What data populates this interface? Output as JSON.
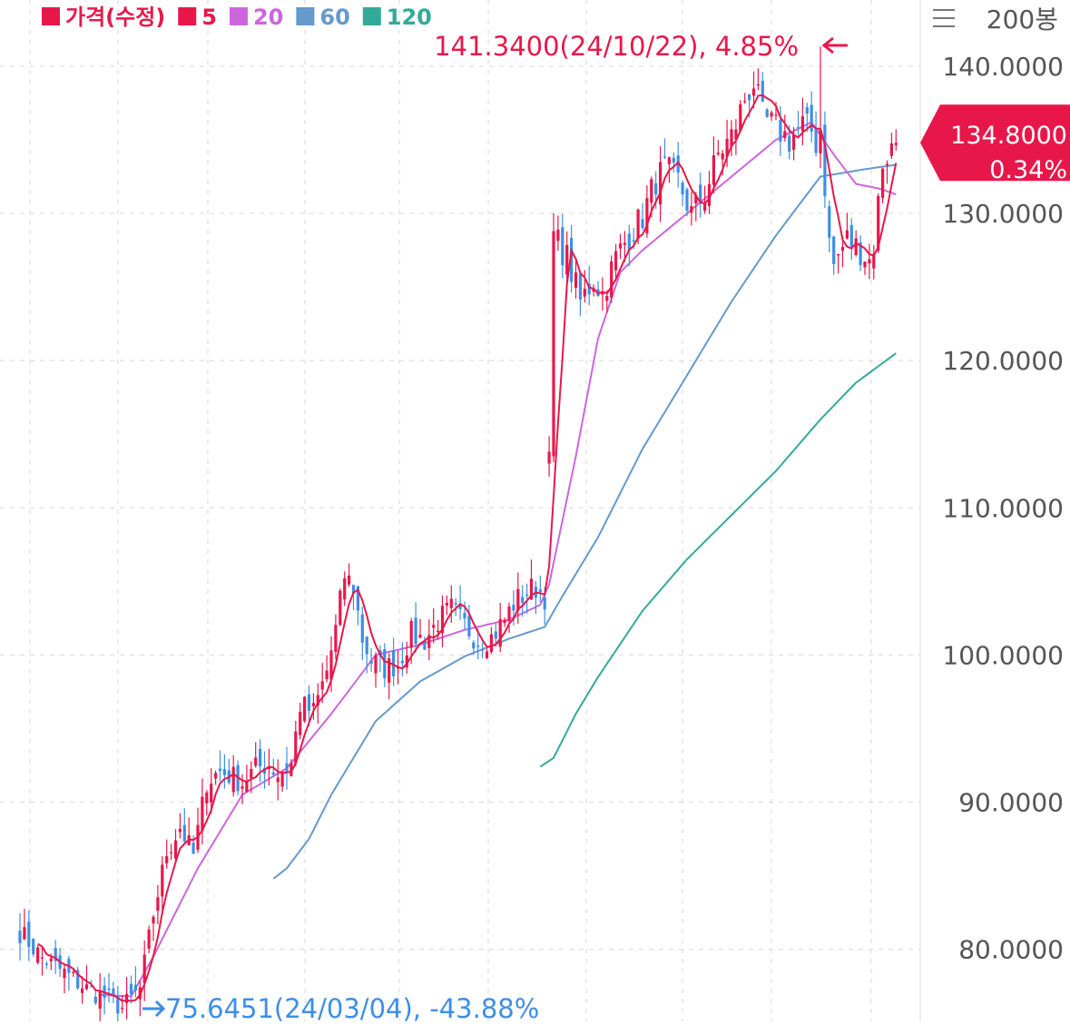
{
  "header": {
    "menu_icon": "menu-icon",
    "period_label": "200봉"
  },
  "legend": [
    {
      "name": "가격(수정)",
      "color": "#e8174a"
    },
    {
      "name": "5",
      "color": "#e8174a"
    },
    {
      "name": "20",
      "color": "#cc66dd"
    },
    {
      "name": "60",
      "color": "#6699cc"
    },
    {
      "name": "120",
      "color": "#33aa99"
    }
  ],
  "colors": {
    "up": "#e8174a",
    "down": "#3d8ee6",
    "ma5": "#e8174a",
    "ma20": "#cc66dd",
    "ma60": "#6699cc",
    "ma120": "#33aa99",
    "grid": "#d8d8d8",
    "divider": "#e8e8e8"
  },
  "chart_data": {
    "type": "candlestick",
    "bars": 200,
    "y_ticks": [
      "140.0000",
      "130.0000",
      "120.0000",
      "110.0000",
      "100.0000",
      "90.0000",
      "80.0000"
    ],
    "y_tick_values": [
      140,
      130,
      120,
      110,
      100,
      90,
      80
    ],
    "ylim": [
      75.1,
      144.5
    ],
    "high_annotation": {
      "text": "141.3400(24/10/22), 4.85%",
      "value": 141.34,
      "date": "24/10/22",
      "pct": "4.85%",
      "bar": 180
    },
    "low_annotation": {
      "text": "75.6451(24/03/04), -43.88%",
      "value": 75.6451,
      "date": "24/03/04",
      "pct": "-43.88%",
      "bar": 23
    },
    "current": {
      "price": "134.8000",
      "change": "0.34%",
      "value": 134.8
    },
    "close_keypoints": [
      [
        0,
        81.2
      ],
      [
        5,
        79.4
      ],
      [
        10,
        78.4
      ],
      [
        15,
        77.3
      ],
      [
        20,
        76.6
      ],
      [
        23,
        76.0
      ],
      [
        27,
        77.3
      ],
      [
        30,
        82.4
      ],
      [
        33,
        86.6
      ],
      [
        36,
        88.3
      ],
      [
        39,
        86.4
      ],
      [
        42,
        91.4
      ],
      [
        45,
        92.1
      ],
      [
        48,
        91.7
      ],
      [
        50,
        91.3
      ],
      [
        53,
        92.3
      ],
      [
        56,
        92.6
      ],
      [
        58,
        91.9
      ],
      [
        61,
        92.6
      ],
      [
        63,
        96.6
      ],
      [
        66,
        96.1
      ],
      [
        69,
        98.9
      ],
      [
        71,
        101.7
      ],
      [
        73,
        105.4
      ],
      [
        75,
        104.6
      ],
      [
        77,
        101.1
      ],
      [
        79,
        99.6
      ],
      [
        82,
        99.1
      ],
      [
        85,
        99.4
      ],
      [
        88,
        101.4
      ],
      [
        91,
        101.0
      ],
      [
        94,
        102.3
      ],
      [
        97,
        103.1
      ],
      [
        100,
        102.0
      ],
      [
        103,
        101.0
      ],
      [
        106,
        101.2
      ],
      [
        109,
        102.4
      ],
      [
        111,
        103.5
      ],
      [
        114,
        104.3
      ],
      [
        116,
        104.6
      ],
      [
        118,
        104.0
      ],
      [
        119,
        113.0
      ],
      [
        120,
        128.5
      ],
      [
        123,
        127.0
      ],
      [
        126,
        124.0
      ],
      [
        129,
        125.5
      ],
      [
        131,
        124.5
      ],
      [
        134,
        127.0
      ],
      [
        137,
        128.5
      ],
      [
        140,
        129.8
      ],
      [
        143,
        132.3
      ],
      [
        145,
        133.0
      ],
      [
        148,
        132.2
      ],
      [
        151,
        130.0
      ],
      [
        154,
        131.3
      ],
      [
        157,
        134.0
      ],
      [
        160,
        135.2
      ],
      [
        163,
        137.8
      ],
      [
        165,
        138.9
      ],
      [
        167,
        136.5
      ],
      [
        170,
        135.8
      ],
      [
        173,
        135.0
      ],
      [
        176,
        136.0
      ],
      [
        178,
        135.6
      ],
      [
        179,
        134.8
      ],
      [
        180,
        135.8
      ],
      [
        182,
        128.0
      ],
      [
        183,
        126.5
      ],
      [
        186,
        128.3
      ],
      [
        189,
        127.5
      ],
      [
        191,
        126.8
      ],
      [
        192,
        127.9
      ],
      [
        194,
        133.5
      ],
      [
        196,
        134.4
      ],
      [
        197,
        134.8
      ]
    ],
    "ma20_keypoints": [
      [
        18,
        76.9
      ],
      [
        25,
        76.8
      ],
      [
        30,
        79.5
      ],
      [
        40,
        85.5
      ],
      [
        50,
        90.5
      ],
      [
        60,
        92.3
      ],
      [
        70,
        96.0
      ],
      [
        80,
        100.0
      ],
      [
        90,
        100.7
      ],
      [
        100,
        101.7
      ],
      [
        110,
        102.4
      ],
      [
        117,
        103.4
      ],
      [
        119,
        104.8
      ],
      [
        125,
        113.5
      ],
      [
        130,
        121.5
      ],
      [
        135,
        126.0
      ],
      [
        140,
        127.5
      ],
      [
        150,
        130.0
      ],
      [
        160,
        132.5
      ],
      [
        170,
        135.0
      ],
      [
        178,
        136.2
      ],
      [
        183,
        134.0
      ],
      [
        188,
        132.0
      ],
      [
        193,
        131.7
      ],
      [
        197,
        131.3
      ]
    ],
    "ma60_keypoints": [
      [
        57,
        84.8
      ],
      [
        60,
        85.5
      ],
      [
        65,
        87.5
      ],
      [
        70,
        90.5
      ],
      [
        80,
        95.5
      ],
      [
        90,
        98.2
      ],
      [
        100,
        99.9
      ],
      [
        110,
        101.1
      ],
      [
        118,
        101.9
      ],
      [
        122,
        104.0
      ],
      [
        130,
        108.0
      ],
      [
        140,
        114.0
      ],
      [
        150,
        119.0
      ],
      [
        160,
        124.0
      ],
      [
        170,
        128.5
      ],
      [
        180,
        132.5
      ],
      [
        190,
        133.0
      ],
      [
        197,
        133.3
      ]
    ],
    "ma120_keypoints": [
      [
        117,
        92.4
      ],
      [
        120,
        93.0
      ],
      [
        125,
        96.0
      ],
      [
        130,
        98.5
      ],
      [
        140,
        103.0
      ],
      [
        150,
        106.5
      ],
      [
        160,
        109.5
      ],
      [
        170,
        112.5
      ],
      [
        180,
        116.0
      ],
      [
        188,
        118.5
      ],
      [
        197,
        120.5
      ]
    ]
  }
}
